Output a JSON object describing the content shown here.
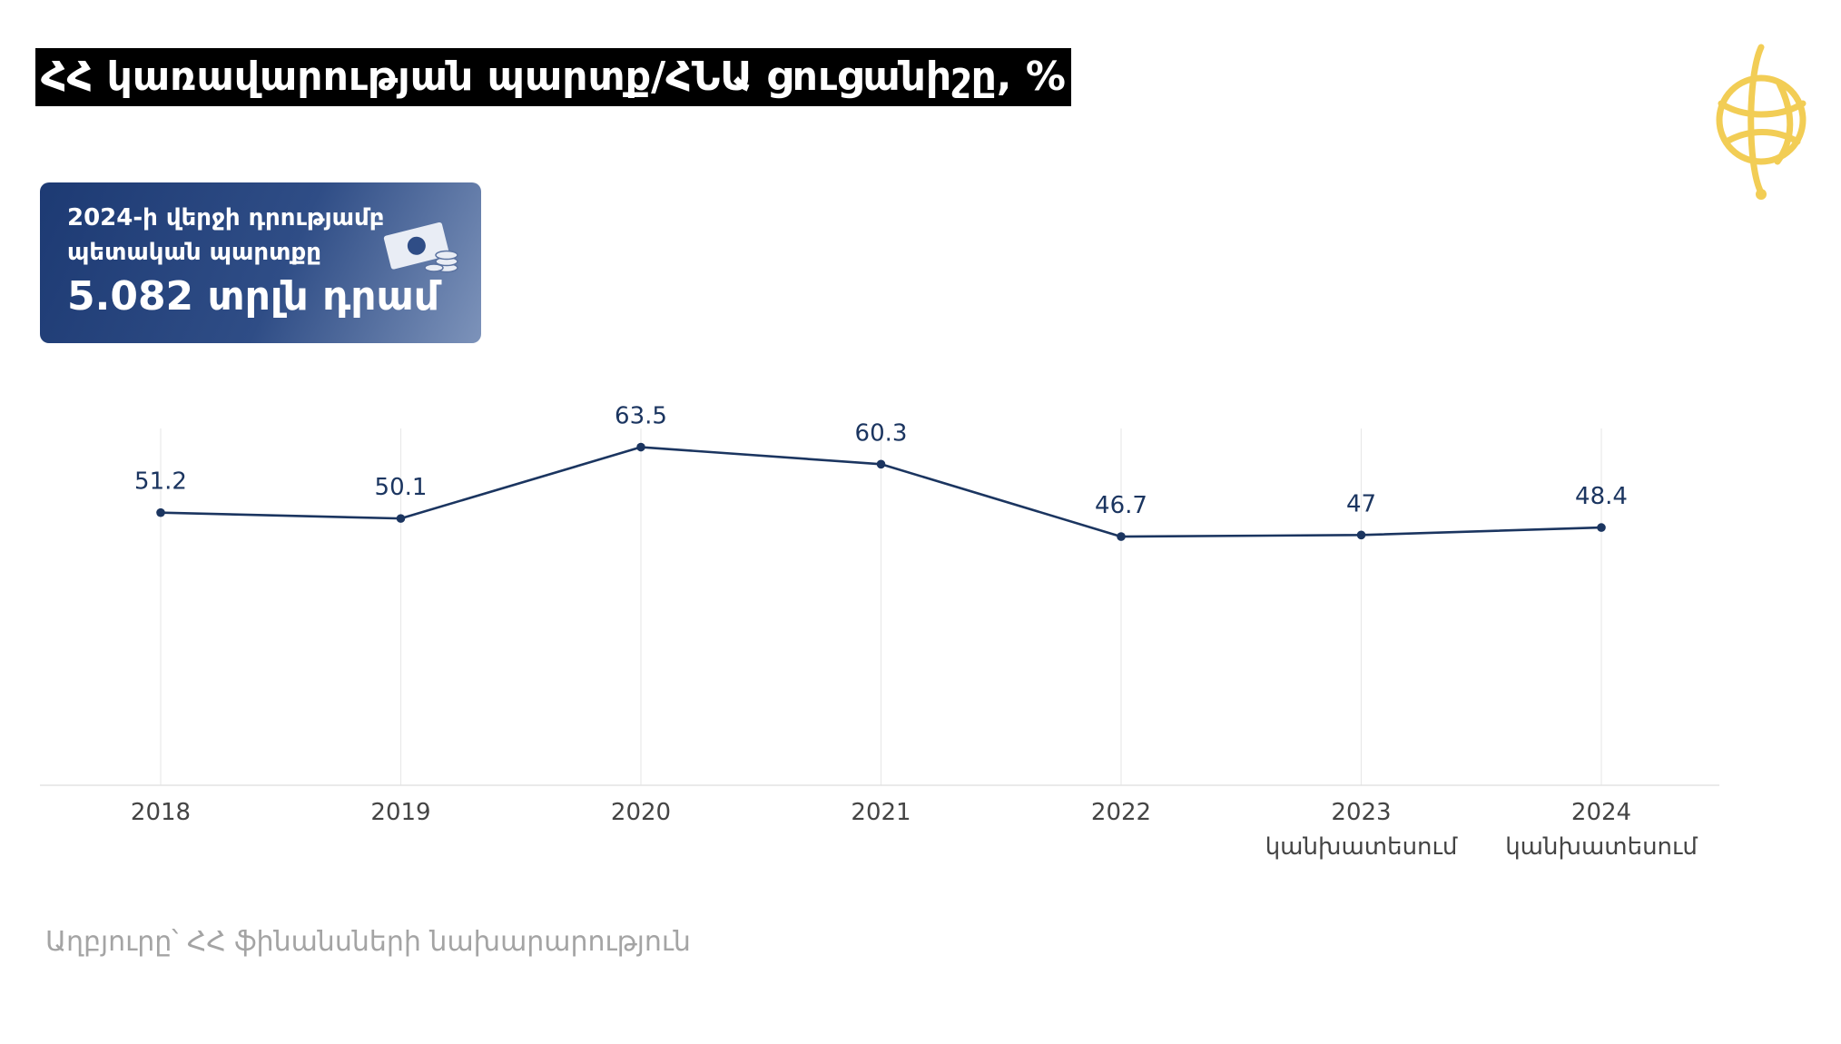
{
  "header": {
    "title": "ՀՀ կառավարության պարտք/ՀՆԱ ցուցանիշը, %"
  },
  "logo": {
    "icon": "globe-logo-icon",
    "color": "#f2cd55"
  },
  "info_card": {
    "caption_line1": "2024-ի վերջի դրությամբ",
    "caption_line2": "պետական պարտքը",
    "value": "5.082 տրլն դրամ",
    "icon": "money-coins-icon"
  },
  "colors": {
    "line": "#1b3560",
    "grid": "#e9e9e9",
    "axis": "#e3e3e3",
    "tick_text": "#444444"
  },
  "chart_data": {
    "type": "line",
    "title": "ՀՀ կառավարության պարտք/ՀՆԱ ցուցանիշը, %",
    "xlabel": "",
    "ylabel": "",
    "categories": [
      "2018",
      "2019",
      "2020",
      "2021",
      "2022",
      "2023",
      "2024"
    ],
    "category_notes": [
      "",
      "",
      "",
      "",
      "",
      "կանխատեսում",
      "կանխատեսում"
    ],
    "values": [
      51.2,
      50.1,
      63.5,
      60.3,
      46.7,
      47,
      48.4
    ],
    "data_labels": [
      "51.2",
      "50.1",
      "63.5",
      "60.3",
      "46.7",
      "47",
      "48.4"
    ],
    "ylim": [
      0,
      67
    ],
    "grid": "vertical",
    "legend": "none"
  },
  "source": "Աղբյուրը՝ ՀՀ ֆինանսների նախարարություն"
}
